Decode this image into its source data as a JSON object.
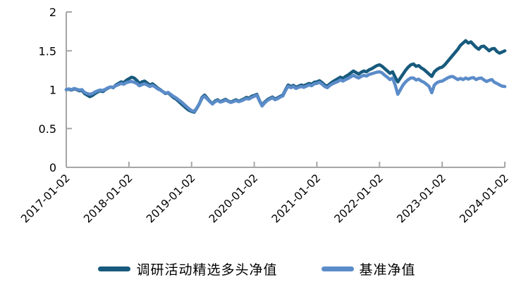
{
  "chart_data": {
    "type": "line",
    "title": "",
    "xlabel": "",
    "ylabel": "",
    "ylim": [
      0,
      2
    ],
    "y_ticks": [
      0,
      0.5,
      1,
      1.5,
      2
    ],
    "y_tick_labels": [
      "0",
      "0.5",
      "1",
      "1.5",
      "2"
    ],
    "x_tick_labels": [
      "2017-01-02",
      "2018-01-02",
      "2019-01-02",
      "2020-01-02",
      "2021-01-02",
      "2022-01-02",
      "2023-01-02",
      "2024-01-02"
    ],
    "x_range_years": [
      0,
      7
    ],
    "x_step_years": 0.0416667,
    "grid": "off",
    "legend_position": "bottom",
    "axis_color": "#A6A6A6",
    "tick_label_color": "#000000",
    "series": [
      {
        "name": "调研活动精选多头净值",
        "color": "#175A7D",
        "line_width": 4.5,
        "values": [
          1.0,
          1.005,
          0.995,
          1.01,
          1.0,
          0.985,
          0.99,
          0.95,
          0.93,
          0.91,
          0.925,
          0.95,
          0.97,
          0.985,
          0.975,
          1.0,
          1.02,
          1.035,
          1.025,
          1.06,
          1.08,
          1.1,
          1.09,
          1.12,
          1.14,
          1.16,
          1.15,
          1.12,
          1.08,
          1.1,
          1.11,
          1.085,
          1.06,
          1.075,
          1.05,
          1.02,
          1.0,
          0.975,
          0.95,
          0.96,
          0.93,
          0.9,
          0.88,
          0.85,
          0.82,
          0.79,
          0.76,
          0.735,
          0.72,
          0.71,
          0.76,
          0.82,
          0.9,
          0.93,
          0.89,
          0.85,
          0.82,
          0.855,
          0.87,
          0.845,
          0.86,
          0.875,
          0.855,
          0.84,
          0.855,
          0.87,
          0.85,
          0.865,
          0.88,
          0.9,
          0.89,
          0.915,
          0.925,
          0.94,
          0.86,
          0.8,
          0.84,
          0.87,
          0.89,
          0.905,
          0.88,
          0.895,
          0.915,
          0.93,
          1.0,
          1.06,
          1.04,
          1.055,
          1.03,
          1.045,
          1.06,
          1.05,
          1.065,
          1.08,
          1.07,
          1.095,
          1.1,
          1.115,
          1.09,
          1.06,
          1.045,
          1.075,
          1.1,
          1.12,
          1.14,
          1.16,
          1.145,
          1.17,
          1.19,
          1.215,
          1.24,
          1.22,
          1.2,
          1.225,
          1.24,
          1.23,
          1.255,
          1.27,
          1.29,
          1.31,
          1.32,
          1.3,
          1.27,
          1.24,
          1.21,
          1.23,
          1.16,
          1.1,
          1.15,
          1.2,
          1.25,
          1.29,
          1.32,
          1.33,
          1.3,
          1.31,
          1.28,
          1.26,
          1.23,
          1.2,
          1.17,
          1.23,
          1.26,
          1.28,
          1.29,
          1.32,
          1.36,
          1.4,
          1.44,
          1.48,
          1.52,
          1.57,
          1.6,
          1.63,
          1.6,
          1.615,
          1.58,
          1.545,
          1.52,
          1.555,
          1.56,
          1.53,
          1.5,
          1.525,
          1.53,
          1.49,
          1.47,
          1.485,
          1.5
        ]
      },
      {
        "name": "基准净值",
        "color": "#5B8CC9",
        "line_width": 4.5,
        "values": [
          1.0,
          1.01,
          1.0,
          1.015,
          1.005,
          0.995,
          1.0,
          0.965,
          0.95,
          0.94,
          0.95,
          0.97,
          0.985,
          0.995,
          0.99,
          1.005,
          1.025,
          1.035,
          1.03,
          1.05,
          1.065,
          1.08,
          1.07,
          1.09,
          1.1,
          1.105,
          1.095,
          1.08,
          1.05,
          1.065,
          1.075,
          1.06,
          1.04,
          1.055,
          1.035,
          1.01,
          0.995,
          0.975,
          0.955,
          0.965,
          0.94,
          0.915,
          0.895,
          0.87,
          0.845,
          0.815,
          0.785,
          0.755,
          0.73,
          0.72,
          0.765,
          0.82,
          0.89,
          0.915,
          0.88,
          0.845,
          0.815,
          0.845,
          0.86,
          0.84,
          0.85,
          0.865,
          0.85,
          0.835,
          0.845,
          0.86,
          0.845,
          0.855,
          0.87,
          0.885,
          0.88,
          0.9,
          0.915,
          0.93,
          0.855,
          0.79,
          0.83,
          0.86,
          0.88,
          0.895,
          0.87,
          0.885,
          0.905,
          0.92,
          0.99,
          1.045,
          1.025,
          1.04,
          1.015,
          1.03,
          1.04,
          1.03,
          1.045,
          1.06,
          1.05,
          1.075,
          1.08,
          1.095,
          1.07,
          1.04,
          1.025,
          1.055,
          1.075,
          1.09,
          1.105,
          1.125,
          1.11,
          1.13,
          1.145,
          1.165,
          1.185,
          1.165,
          1.15,
          1.17,
          1.185,
          1.175,
          1.195,
          1.205,
          1.215,
          1.225,
          1.23,
          1.215,
          1.185,
          1.16,
          1.13,
          1.15,
          1.06,
          0.94,
          1.0,
          1.06,
          1.1,
          1.13,
          1.15,
          1.15,
          1.125,
          1.135,
          1.11,
          1.095,
          1.07,
          1.04,
          0.96,
          1.06,
          1.09,
          1.105,
          1.11,
          1.13,
          1.15,
          1.165,
          1.17,
          1.15,
          1.13,
          1.145,
          1.13,
          1.15,
          1.135,
          1.15,
          1.155,
          1.13,
          1.145,
          1.15,
          1.125,
          1.105,
          1.12,
          1.13,
          1.095,
          1.08,
          1.06,
          1.045,
          1.04
        ]
      }
    ]
  },
  "legend": {
    "items": [
      {
        "label": "调研活动精选多头净值",
        "color": "#175A7D"
      },
      {
        "label": "基准净值",
        "color": "#5B8CC9"
      }
    ]
  }
}
